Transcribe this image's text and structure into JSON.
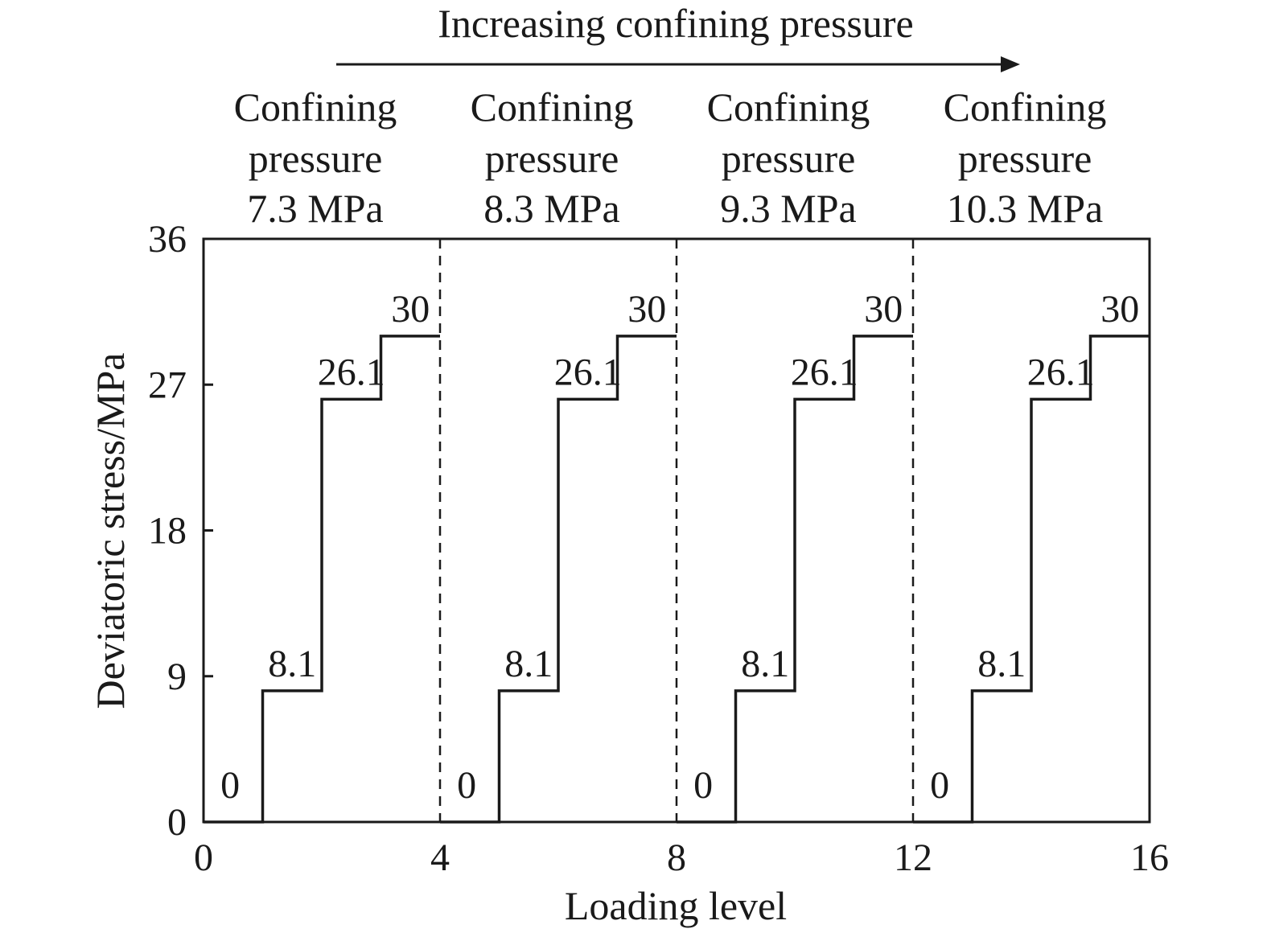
{
  "chart_data": {
    "type": "line",
    "title": "",
    "xlabel": "Loading level",
    "ylabel": "Deviatoric stress/MPa",
    "xlim": [
      0,
      16
    ],
    "ylim": [
      0,
      36
    ],
    "xticks": [
      "0",
      "4",
      "8",
      "12",
      "16"
    ],
    "yticks": [
      "0",
      "9",
      "18",
      "27",
      "36"
    ],
    "grid": false,
    "arrow_label": "Increasing confining pressure",
    "group_labels": [
      [
        "Confining",
        "pressure",
        "7.3 MPa"
      ],
      [
        "Confining",
        "pressure",
        "8.3 MPa"
      ],
      [
        "Confining",
        "pressure",
        "9.3 MPa"
      ],
      [
        "Confining",
        "pressure",
        "10.3 MPa"
      ]
    ],
    "separators_x": [
      4,
      8,
      12
    ],
    "step_labels": [
      "0",
      "8.1",
      "26.1",
      "30"
    ],
    "series": [
      {
        "x": [
          0,
          1,
          1,
          2,
          2,
          3,
          3,
          4
        ],
        "y": [
          0,
          0,
          8.1,
          8.1,
          26.1,
          26.1,
          30,
          30
        ]
      },
      {
        "x": [
          4,
          5,
          5,
          6,
          6,
          7,
          7,
          8
        ],
        "y": [
          0,
          0,
          8.1,
          8.1,
          26.1,
          26.1,
          30,
          30
        ]
      },
      {
        "x": [
          8,
          9,
          9,
          10,
          10,
          11,
          11,
          12
        ],
        "y": [
          0,
          0,
          8.1,
          8.1,
          26.1,
          26.1,
          30,
          30
        ]
      },
      {
        "x": [
          12,
          13,
          13,
          14,
          14,
          15,
          15,
          16
        ],
        "y": [
          0,
          0,
          8.1,
          8.1,
          26.1,
          26.1,
          30,
          30
        ]
      }
    ]
  }
}
